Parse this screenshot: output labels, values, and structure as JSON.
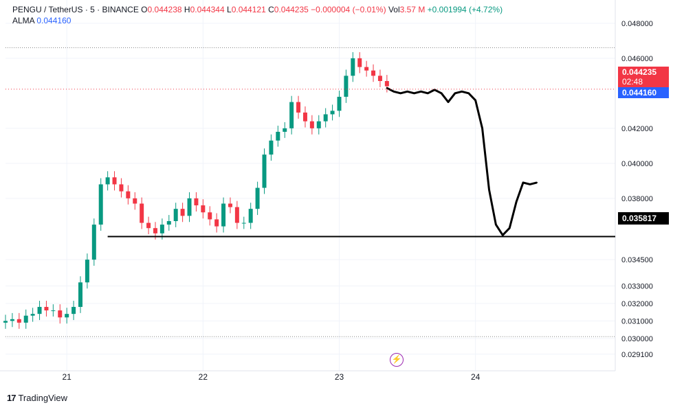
{
  "legend": {
    "symbol": "PENGU / TetherUS · 5 · BINANCE",
    "o_label": "O",
    "o_value": "0.044238",
    "h_label": "H",
    "h_value": "0.044344",
    "l_label": "L",
    "l_value": "0.044121",
    "c_label": "C",
    "c_value": "0.044235",
    "change": "−0.000004 (−0.01%)",
    "vol_label": "Vol",
    "vol_value": "3.57 M",
    "change2": "+0.001994 (+4.72%)",
    "indicator_label": "ALMA",
    "indicator_value": "0.044160"
  },
  "price_tags": {
    "last_price": "0.044235",
    "countdown": "02:48",
    "alma": "0.044160",
    "support": "0.035817"
  },
  "footer": {
    "brand": "TradingView",
    "logo": "17"
  },
  "colors": {
    "up": "#089981",
    "down": "#f23645",
    "alma": "#2962ff",
    "drawing": "#000000",
    "grid": "#f0f3fa"
  },
  "chart_data": {
    "type": "line",
    "title": "PENGU / TetherUS · 5 · BINANCE",
    "y_ticks": [
      "0.048000",
      "0.046000",
      "0.042000",
      "0.040000",
      "0.038000",
      "0.034500",
      "0.033000",
      "0.032000",
      "0.031000",
      "0.030000",
      "0.029100"
    ],
    "x_ticks": [
      "21",
      "22",
      "23",
      "24"
    ],
    "ylim": [
      0.0287,
      0.0487
    ],
    "grid": true,
    "hline": 0.035817,
    "series": [
      {
        "kind": "candles",
        "x": [
          20.55,
          20.6,
          20.65,
          20.7,
          20.75,
          20.8,
          20.85,
          20.9,
          20.95,
          21.0,
          21.05,
          21.1,
          21.15,
          21.2,
          21.25,
          21.3,
          21.35,
          21.4,
          21.45,
          21.5,
          21.55,
          21.6,
          21.65,
          21.7,
          21.75,
          21.8,
          21.85,
          21.9,
          21.95,
          22.0,
          22.05,
          22.1,
          22.15,
          22.2,
          22.25,
          22.3,
          22.35,
          22.4,
          22.45,
          22.5,
          22.55,
          22.6,
          22.65,
          22.7,
          22.75,
          22.8,
          22.85,
          22.9,
          22.95,
          23.0,
          23.05,
          23.1,
          23.15,
          23.2,
          23.25,
          23.3,
          23.35
        ],
        "y": [
          0.031,
          0.0311,
          0.0309,
          0.0313,
          0.0314,
          0.0318,
          0.0316,
          0.0316,
          0.0312,
          0.0314,
          0.0318,
          0.0332,
          0.0345,
          0.0365,
          0.0388,
          0.0392,
          0.0388,
          0.0384,
          0.038,
          0.0377,
          0.0366,
          0.0363,
          0.036,
          0.0365,
          0.0367,
          0.0374,
          0.037,
          0.038,
          0.0376,
          0.0372,
          0.0368,
          0.0364,
          0.0377,
          0.0375,
          0.0366,
          0.0366,
          0.0374,
          0.0386,
          0.0405,
          0.0413,
          0.0418,
          0.042,
          0.0435,
          0.0429,
          0.0424,
          0.042,
          0.0424,
          0.0428,
          0.043,
          0.0438,
          0.045,
          0.046,
          0.0455,
          0.0453,
          0.045,
          0.0447,
          0.0444
        ]
      },
      {
        "kind": "drawn-line",
        "x": [
          23.35,
          23.4,
          23.45,
          23.5,
          23.55,
          23.6,
          23.65,
          23.7,
          23.75,
          23.8,
          23.85,
          23.9,
          23.95,
          24.0,
          24.05,
          24.1,
          24.15,
          24.2,
          24.25,
          24.3,
          24.35,
          24.4,
          24.45
        ],
        "y": [
          0.0443,
          0.0441,
          0.044,
          0.0441,
          0.044,
          0.0441,
          0.044,
          0.0442,
          0.044,
          0.0435,
          0.044,
          0.0441,
          0.044,
          0.0436,
          0.042,
          0.0385,
          0.0365,
          0.0359,
          0.0363,
          0.0378,
          0.0389,
          0.0388,
          0.0389
        ]
      }
    ]
  }
}
